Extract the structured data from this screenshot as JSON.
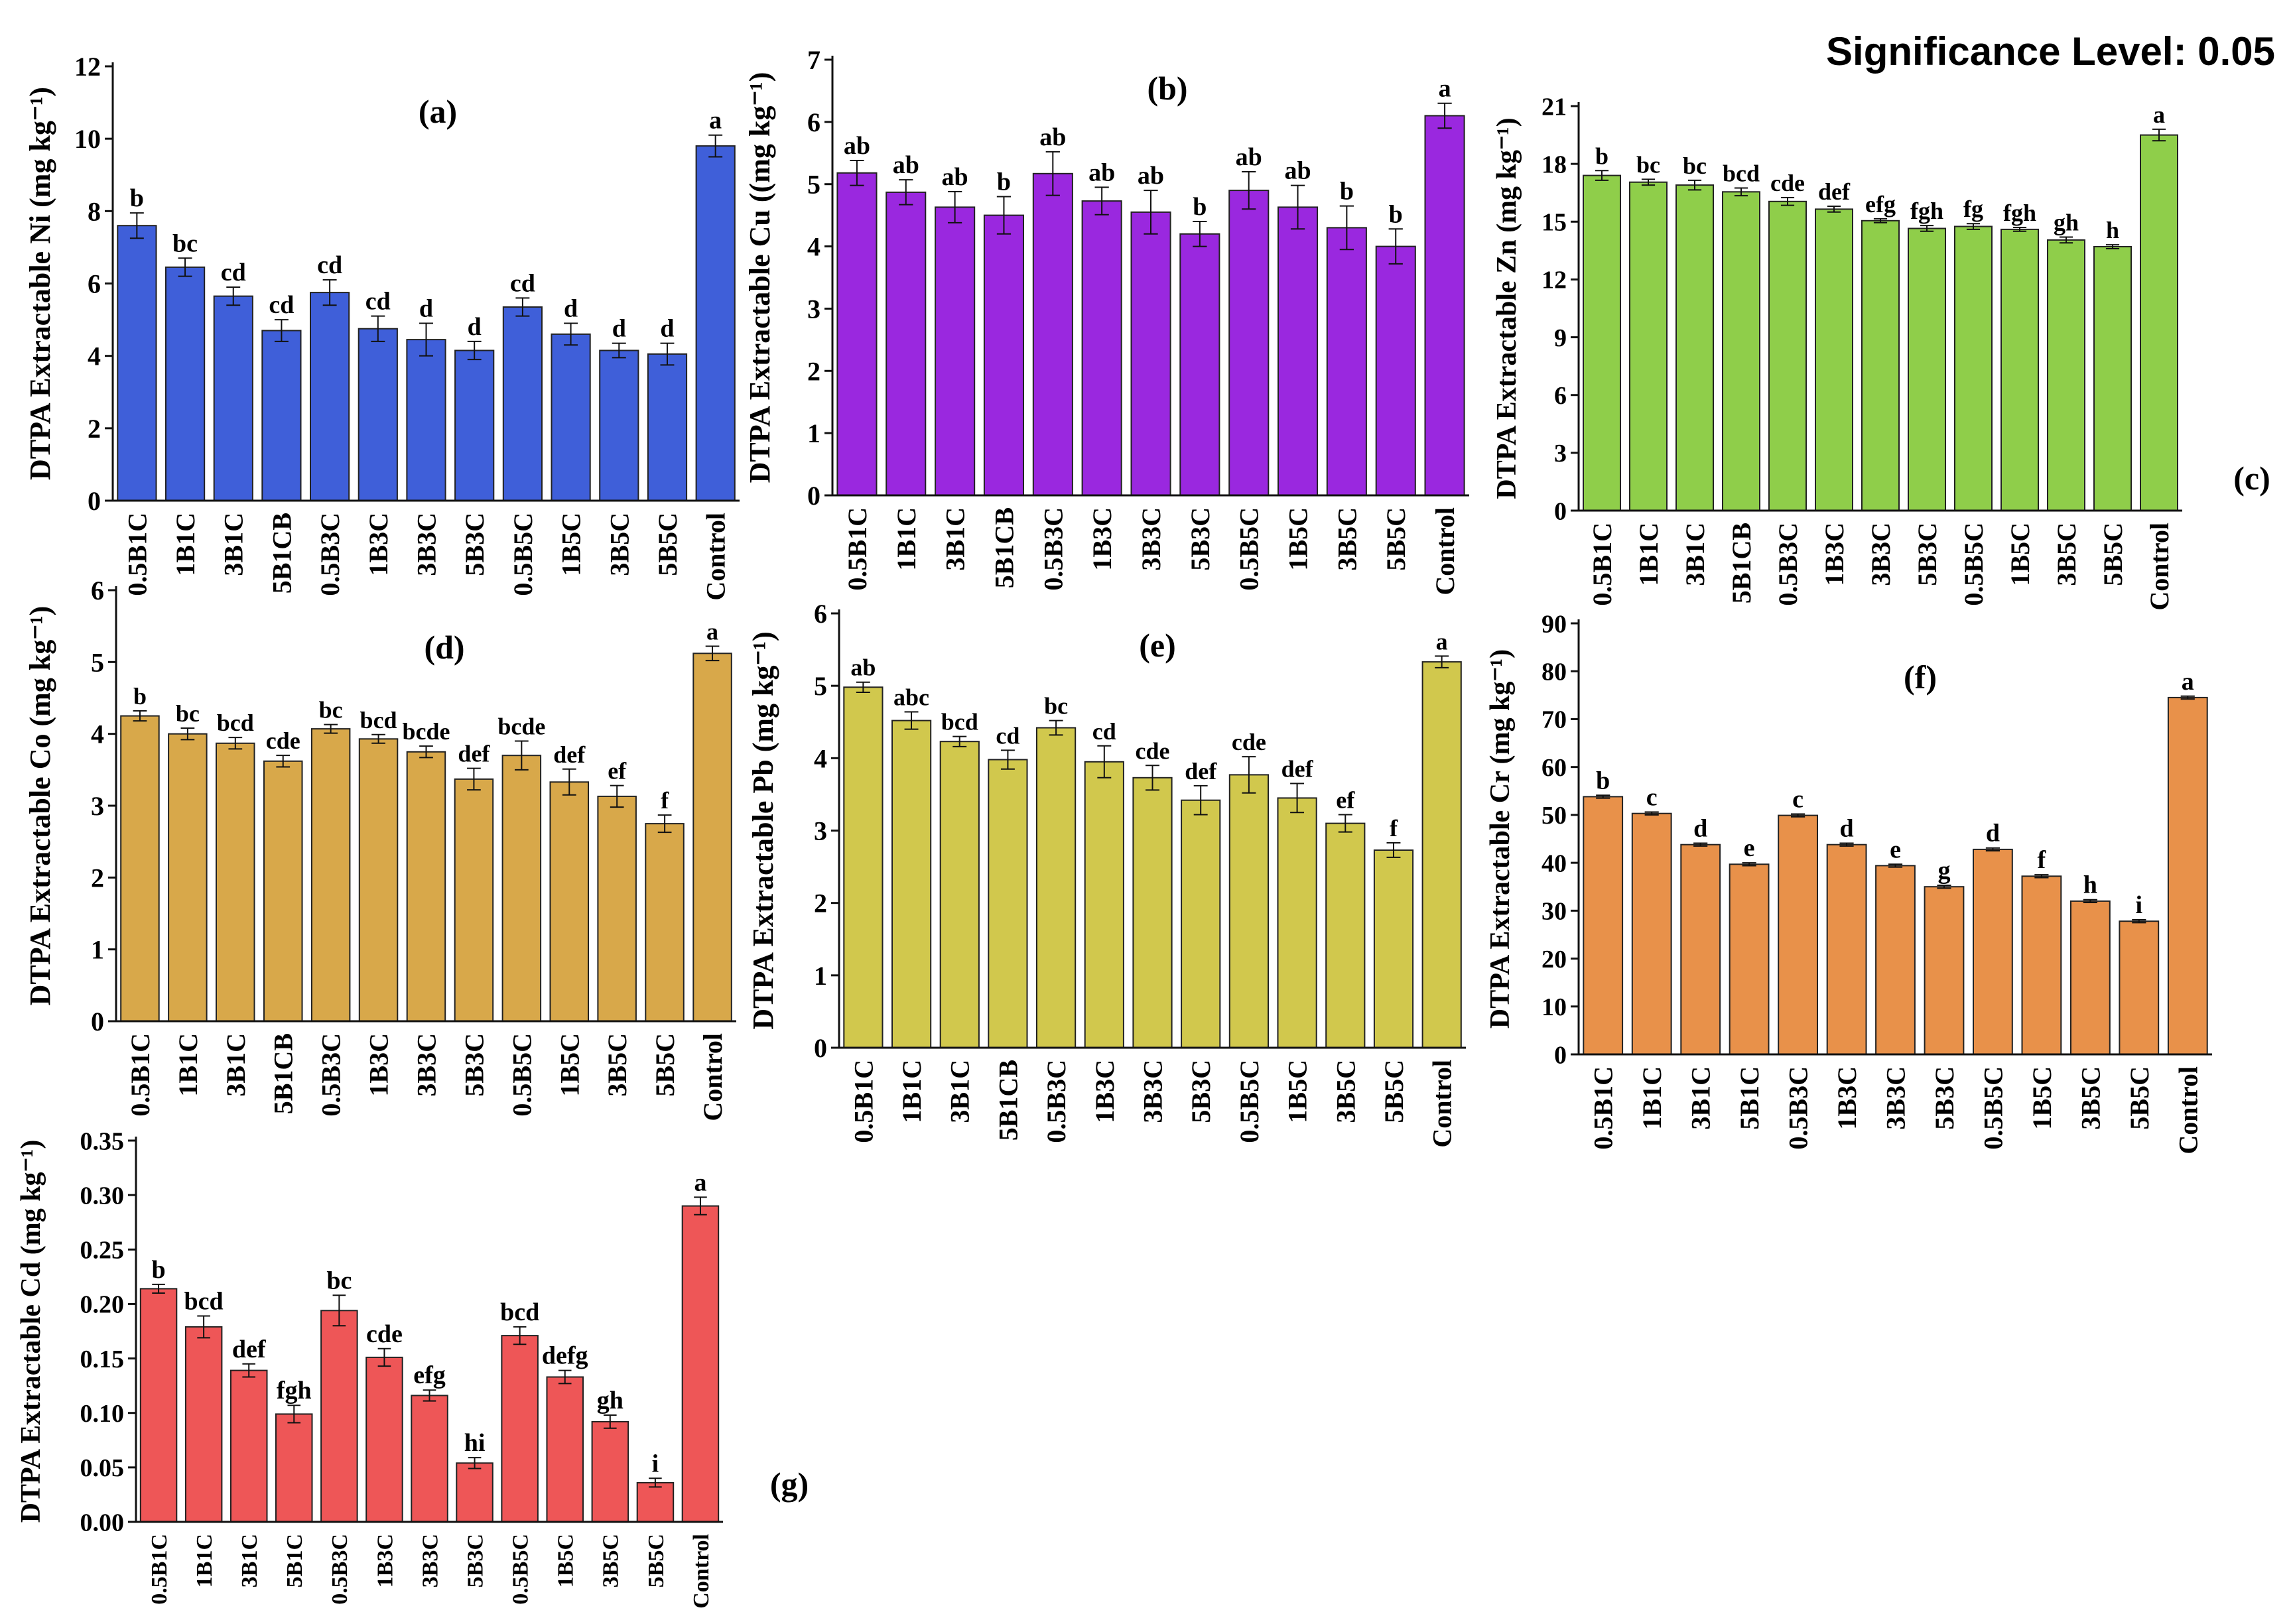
{
  "figure_title": "Significance Level: 0.05",
  "chart_data": [
    {
      "type": "bar",
      "panel_label": "(a)",
      "ylabel": "DTPA Extractable Ni (mg kg⁻¹)",
      "color": "#3f5fd9",
      "ylim": [
        0,
        12
      ],
      "yticks": [
        0,
        2,
        4,
        6,
        8,
        10,
        12
      ],
      "ytick_labels": [
        "0",
        "2",
        "4",
        "6",
        "8",
        "10",
        "12"
      ],
      "categories": [
        "0.5B1C",
        "1B1C",
        "3B1C",
        "5B1CB",
        "0.5B3C",
        "1B3C",
        "3B3C",
        "5B3C",
        "0.5B5C",
        "1B5C",
        "3B5C",
        "5B5C",
        "Control"
      ],
      "values": [
        7.6,
        6.45,
        5.65,
        4.7,
        5.75,
        4.75,
        4.45,
        4.15,
        5.35,
        4.6,
        4.15,
        4.05,
        9.8
      ],
      "errors": [
        0.35,
        0.25,
        0.25,
        0.3,
        0.35,
        0.35,
        0.45,
        0.25,
        0.25,
        0.3,
        0.2,
        0.3,
        0.3
      ],
      "letters": [
        "b",
        "bc",
        "cd",
        "cd",
        "cd",
        "cd",
        "d",
        "d",
        "cd",
        "d",
        "d",
        "d",
        "a"
      ]
    },
    {
      "type": "bar",
      "panel_label": "(b)",
      "ylabel": "DTPA Extractable Cu ((mg kg⁻¹)",
      "color": "#9a28df",
      "ylim": [
        0,
        7
      ],
      "yticks": [
        0,
        1,
        2,
        3,
        4,
        5,
        6,
        7
      ],
      "ytick_labels": [
        "0",
        "1",
        "2",
        "3",
        "4",
        "5",
        "6",
        "7"
      ],
      "categories": [
        "0.5B1C",
        "1B1C",
        "3B1C",
        "5B1CB",
        "0.5B3C",
        "1B3C",
        "3B3C",
        "5B3C",
        "0.5B5C",
        "1B5C",
        "3B5C",
        "5B5C",
        "Control"
      ],
      "values": [
        5.18,
        4.87,
        4.63,
        4.5,
        5.17,
        4.73,
        4.55,
        4.2,
        4.9,
        4.63,
        4.3,
        4.0,
        6.1
      ],
      "errors": [
        0.2,
        0.2,
        0.25,
        0.3,
        0.35,
        0.22,
        0.35,
        0.2,
        0.3,
        0.35,
        0.35,
        0.28,
        0.2
      ],
      "letters": [
        "ab",
        "ab",
        "ab",
        "b",
        "ab",
        "ab",
        "ab",
        "b",
        "ab",
        "ab",
        "b",
        "b",
        "a"
      ]
    },
    {
      "type": "bar",
      "panel_label": "(c)",
      "ylabel": "DTPA Extractable Zn (mg kg⁻¹)",
      "color": "#8fce4a",
      "ylim": [
        0,
        21
      ],
      "yticks": [
        0,
        3,
        6,
        9,
        12,
        15,
        18,
        21
      ],
      "ytick_labels": [
        "0",
        "3",
        "6",
        "9",
        "12",
        "15",
        "18",
        "21"
      ],
      "categories": [
        "0.5B1C",
        "1B1C",
        "3B1C",
        "5B1CB",
        "0.5B3C",
        "1B3C",
        "3B3C",
        "5B3C",
        "0.5B5C",
        "1B5C",
        "3B5C",
        "5B5C",
        "Control"
      ],
      "values": [
        17.4,
        17.05,
        16.9,
        16.55,
        16.05,
        15.65,
        15.05,
        14.65,
        14.75,
        14.6,
        14.05,
        13.7,
        19.5
      ],
      "errors": [
        0.25,
        0.15,
        0.25,
        0.2,
        0.2,
        0.15,
        0.1,
        0.15,
        0.15,
        0.1,
        0.15,
        0.1,
        0.3
      ],
      "letters": [
        "b",
        "bc",
        "bc",
        "bcd",
        "cde",
        "def",
        "efg",
        "fgh",
        "fg",
        "fgh",
        "gh",
        "h",
        "a"
      ]
    },
    {
      "type": "bar",
      "panel_label": "(d)",
      "ylabel": "DTPA Extractable Co (mg kg⁻¹)",
      "color": "#d8a84a",
      "ylim": [
        0,
        6
      ],
      "yticks": [
        0,
        1,
        2,
        3,
        4,
        5,
        6
      ],
      "ytick_labels": [
        "0",
        "1",
        "2",
        "3",
        "4",
        "5",
        "6"
      ],
      "categories": [
        "0.5B1C",
        "1B1C",
        "3B1C",
        "5B1CB",
        "0.5B3C",
        "1B3C",
        "3B3C",
        "5B3C",
        "0.5B5C",
        "1B5C",
        "3B5C",
        "5B5C",
        "Control"
      ],
      "values": [
        4.25,
        4.0,
        3.87,
        3.62,
        4.07,
        3.93,
        3.75,
        3.37,
        3.7,
        3.33,
        3.13,
        2.75,
        5.12
      ],
      "errors": [
        0.07,
        0.08,
        0.08,
        0.08,
        0.06,
        0.06,
        0.08,
        0.15,
        0.2,
        0.18,
        0.15,
        0.12,
        0.1
      ],
      "letters": [
        "b",
        "bc",
        "bcd",
        "cde",
        "bc",
        "bcd",
        "bcde",
        "def",
        "bcde",
        "def",
        "ef",
        "f",
        "a"
      ]
    },
    {
      "type": "bar",
      "panel_label": "(e)",
      "ylabel": "DTPA Extractable Pb (mg kg⁻¹)",
      "color": "#d1c84d",
      "ylim": [
        0,
        6
      ],
      "yticks": [
        0,
        1,
        2,
        3,
        4,
        5,
        6
      ],
      "ytick_labels": [
        "0",
        "1",
        "2",
        "3",
        "4",
        "5",
        "6"
      ],
      "categories": [
        "0.5B1C",
        "1B1C",
        "3B1C",
        "5B1CB",
        "0.5B3C",
        "1B3C",
        "3B3C",
        "5B3C",
        "0.5B5C",
        "1B5C",
        "3B5C",
        "5B5C",
        "Control"
      ],
      "values": [
        4.98,
        4.52,
        4.23,
        3.98,
        4.42,
        3.95,
        3.73,
        3.42,
        3.77,
        3.45,
        3.1,
        2.73,
        5.33
      ],
      "errors": [
        0.07,
        0.12,
        0.07,
        0.13,
        0.1,
        0.22,
        0.17,
        0.2,
        0.25,
        0.2,
        0.12,
        0.1,
        0.08
      ],
      "letters": [
        "ab",
        "abc",
        "bcd",
        "cd",
        "bc",
        "cd",
        "cde",
        "def",
        "cde",
        "def",
        "ef",
        "f",
        "a"
      ]
    },
    {
      "type": "bar",
      "panel_label": "(f)",
      "ylabel": "DTPA Extractable Cr (mg kg⁻¹)",
      "color": "#e8914a",
      "ylim": [
        0,
        90
      ],
      "yticks": [
        0,
        10,
        20,
        30,
        40,
        50,
        60,
        70,
        80,
        90
      ],
      "ytick_labels": [
        "0",
        "10",
        "20",
        "30",
        "40",
        "50",
        "60",
        "70",
        "80",
        "90"
      ],
      "categories": [
        "0.5B1C",
        "1B1C",
        "3B1C",
        "5B1C",
        "0.5B3C",
        "1B3C",
        "3B3C",
        "5B3C",
        "0.5B5C",
        "1B5C",
        "3B5C",
        "5B5C",
        "Control"
      ],
      "values": [
        53.8,
        50.3,
        43.8,
        39.7,
        49.9,
        43.8,
        39.4,
        35.0,
        42.8,
        37.2,
        32.0,
        27.8,
        74.5
      ],
      "errors": [
        0.3,
        0.3,
        0.3,
        0.3,
        0.3,
        0.3,
        0.3,
        0.3,
        0.3,
        0.3,
        0.3,
        0.3,
        0.3
      ],
      "letters": [
        "b",
        "c",
        "d",
        "e",
        "c",
        "d",
        "e",
        "g",
        "d",
        "f",
        "h",
        "i",
        "a"
      ]
    },
    {
      "type": "bar",
      "panel_label": "(g)",
      "ylabel": "DTPA Extractable Cd (mg kg⁻¹)",
      "color": "#ee5657",
      "ylim": [
        0,
        0.35
      ],
      "yticks": [
        0,
        0.05,
        0.1,
        0.15,
        0.2,
        0.25,
        0.3,
        0.35
      ],
      "ytick_labels": [
        "0.00",
        "0.05",
        "0.10",
        "0.15",
        "0.20",
        "0.25",
        "0.30",
        "0.35"
      ],
      "categories": [
        "0.5B1C",
        "1B1C",
        "3B1C",
        "5B1C",
        "0.5B3C",
        "1B3C",
        "3B3C",
        "5B3C",
        "0.5B5C",
        "1B5C",
        "3B5C",
        "5B5C",
        "Control"
      ],
      "values": [
        0.214,
        0.179,
        0.139,
        0.099,
        0.194,
        0.151,
        0.116,
        0.054,
        0.171,
        0.133,
        0.092,
        0.036,
        0.29
      ],
      "errors": [
        0.004,
        0.01,
        0.006,
        0.008,
        0.014,
        0.008,
        0.005,
        0.005,
        0.008,
        0.006,
        0.006,
        0.004,
        0.008
      ],
      "letters": [
        "b",
        "bcd",
        "def",
        "fgh",
        "bc",
        "cde",
        "efg",
        "hi",
        "bcd",
        "defg",
        "gh",
        "i",
        "a"
      ]
    }
  ]
}
